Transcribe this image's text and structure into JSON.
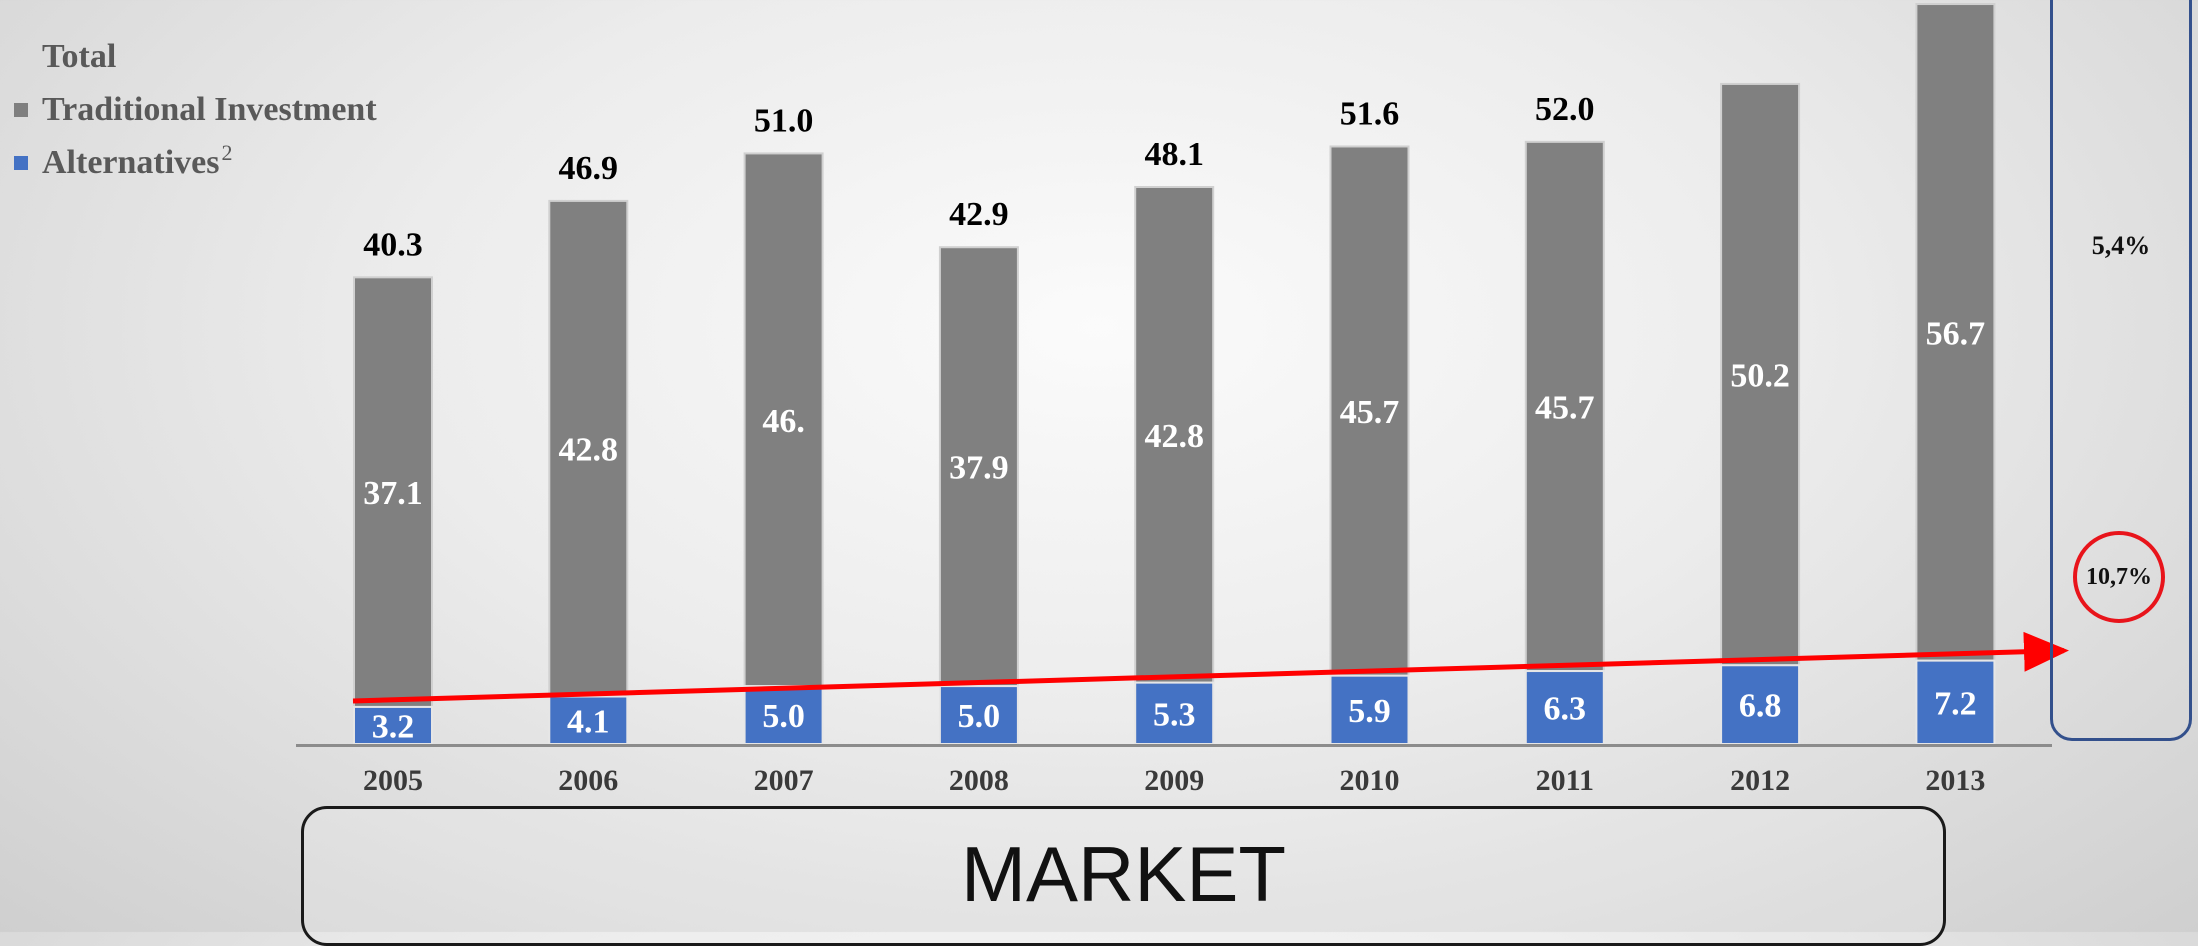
{
  "legend": {
    "total": "Total",
    "traditional": "Traditional Investment",
    "alternatives": "Alternatives",
    "alternatives_sup": "2"
  },
  "colors": {
    "traditional": "#808080",
    "alternatives": "#4472c4",
    "trend": "#ff0000",
    "box_border": "#33508c"
  },
  "cagr": {
    "traditional": "5,4%",
    "alternatives": "10,7%"
  },
  "market_label": "MARKET",
  "chart_data": {
    "type": "bar",
    "stacked": true,
    "categories": [
      "2005",
      "2006",
      "2007",
      "2008",
      "2009",
      "2010",
      "2011",
      "2012",
      "2013"
    ],
    "series": [
      {
        "name": "Alternatives",
        "values": [
          3.2,
          4.1,
          5.0,
          5.0,
          5.3,
          5.9,
          6.3,
          6.8,
          7.2
        ],
        "labels": [
          "3.2",
          "4.1",
          "5.0",
          "5.0",
          "5.3",
          "5.9",
          "6.3",
          "6.8",
          "7.2"
        ]
      },
      {
        "name": "Traditional Investment",
        "values": [
          37.1,
          42.8,
          46.0,
          37.9,
          42.8,
          45.7,
          45.7,
          50.2,
          56.7
        ],
        "labels": [
          "37.1",
          "42.8",
          "46.",
          "37.9",
          "42.8",
          "45.7",
          "45.7",
          "50.2",
          "56.7"
        ]
      }
    ],
    "totals": [
      40.3,
      46.9,
      51.0,
      42.9,
      48.1,
      51.6,
      52.0,
      57.0,
      63.9
    ],
    "total_labels": [
      "40.3",
      "46.9",
      "51.0",
      "42.9",
      "48.1",
      "51.6",
      "52.0",
      "",
      ""
    ],
    "ylim": [
      0,
      64
    ],
    "legend_position": "top-left",
    "grid": false
  }
}
